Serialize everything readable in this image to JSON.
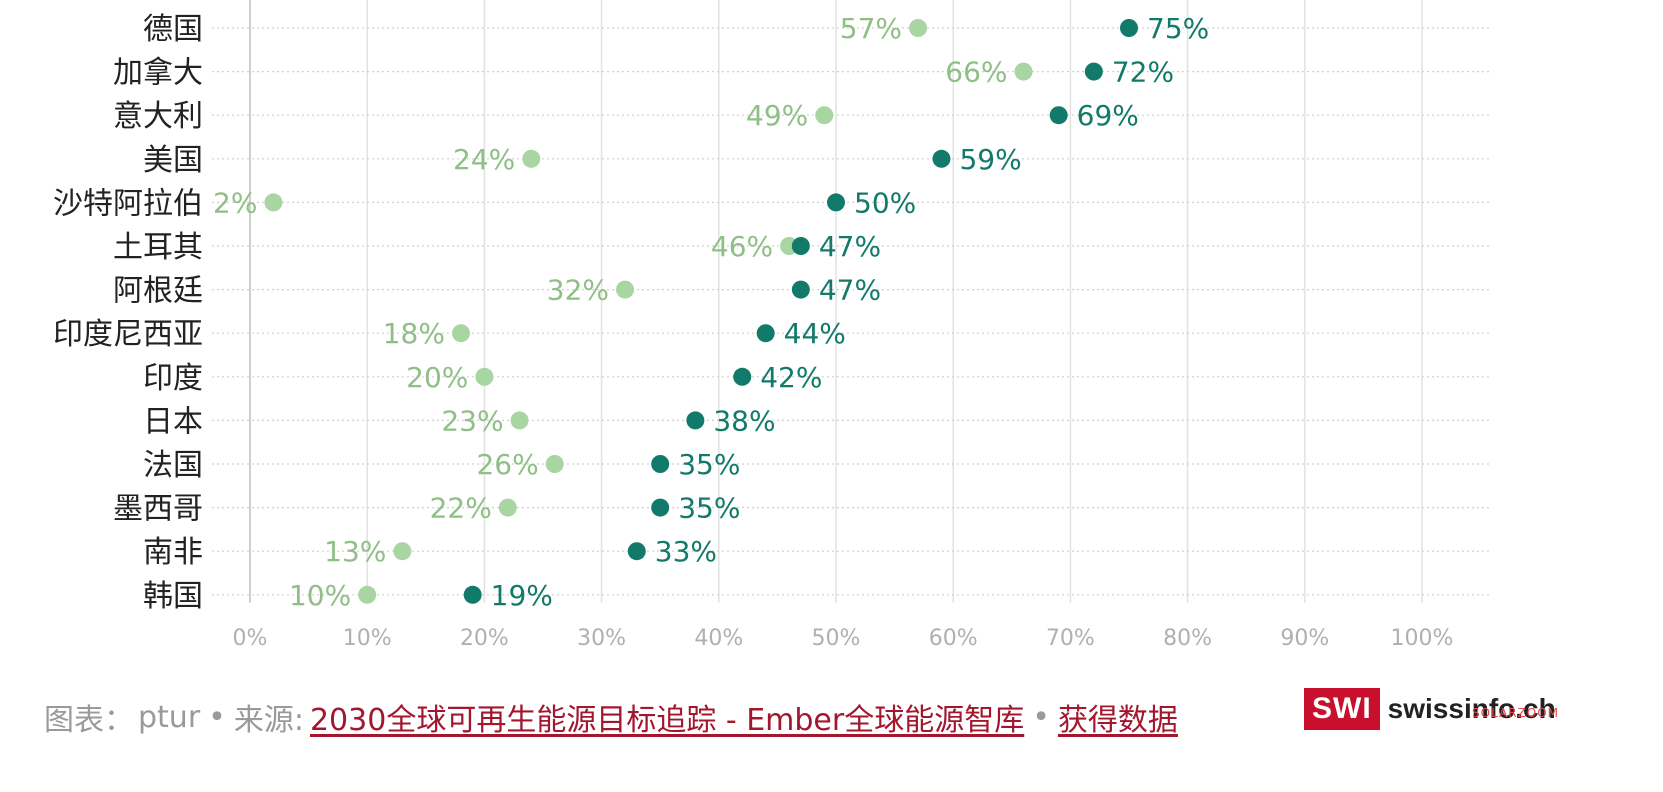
{
  "chart_data": {
    "type": "scatter",
    "subtype": "dot-range",
    "categories": [
      "德国",
      "加拿大",
      "意大利",
      "美国",
      "沙特阿拉伯",
      "土耳其",
      "阿根廷",
      "印度尼西亚",
      "印度",
      "日本",
      "法国",
      "墨西哥",
      "南非",
      "韩国"
    ],
    "series": [
      {
        "color": "#a8d5a2",
        "label_color": "#8fbf86",
        "values": [
          57,
          66,
          49,
          24,
          2,
          46,
          32,
          18,
          20,
          23,
          26,
          22,
          13,
          10
        ]
      },
      {
        "color": "#127a6a",
        "label_color": "#127a6a",
        "values": [
          75,
          72,
          69,
          59,
          50,
          47,
          47,
          44,
          42,
          38,
          35,
          35,
          33,
          19
        ]
      }
    ],
    "data_label_suffix": "%",
    "xlim": [
      0,
      100
    ],
    "xticks": [
      "0%",
      "10%",
      "20%",
      "30%",
      "40%",
      "50%",
      "60%",
      "70%",
      "80%",
      "90%",
      "100%"
    ],
    "grid": true
  },
  "footer": {
    "chart_label": "图表：",
    "author": "ptur",
    "sep": "•",
    "source_label": "来源:",
    "source_link": "2030全球可再生能源目标追踪 - Ember全球能源智库",
    "data_link": "获得数据"
  },
  "brand": {
    "box": "SWI",
    "word": "swissinfo.ch"
  },
  "watermark": "SOLARZOOM"
}
